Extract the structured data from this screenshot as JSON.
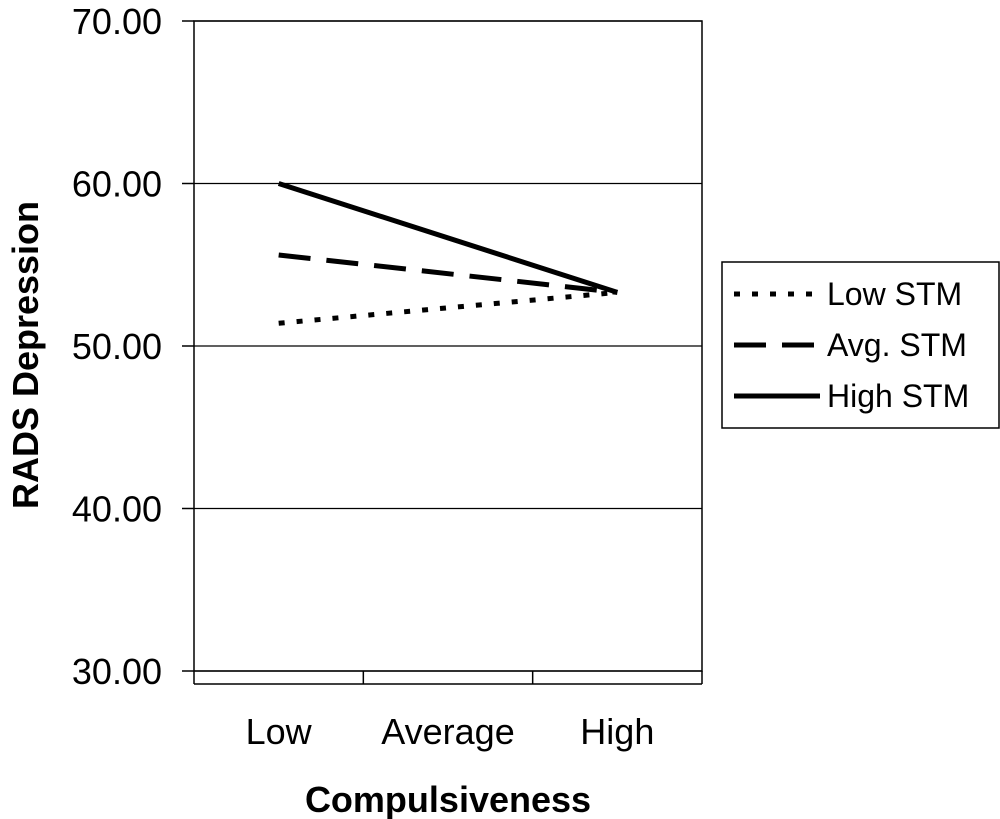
{
  "chart_data": {
    "type": "line",
    "title": "",
    "xlabel": "Compulsiveness",
    "ylabel": "RADS Depression",
    "categories": [
      "Low",
      "Average",
      "High"
    ],
    "ylim": [
      30,
      70
    ],
    "yticks": [
      "30.00",
      "40.00",
      "50.00",
      "60.00",
      "70.00"
    ],
    "grid": true,
    "legend_position": "right",
    "series": [
      {
        "name": "Low STM",
        "style": "dotted",
        "values": [
          51.4,
          null,
          53.3
        ]
      },
      {
        "name": "Avg. STM",
        "style": "dashed",
        "values": [
          55.6,
          null,
          53.3
        ]
      },
      {
        "name": "High STM",
        "style": "solid",
        "values": [
          60.0,
          null,
          53.3
        ]
      }
    ],
    "colors": {
      "line": "#000000",
      "grid": "#000000",
      "background": "#ffffff"
    }
  }
}
